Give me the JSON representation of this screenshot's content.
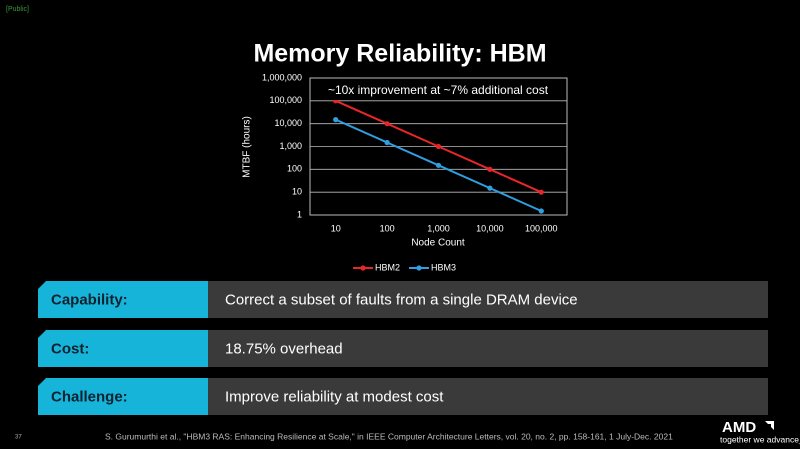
{
  "classification": "[Public]",
  "chart_data": {
    "type": "line",
    "title": "Memory Reliability: HBM",
    "annotation": "~10x improvement at ~7% additional cost",
    "x_label": "Node Count",
    "y_label": "MTBF (hours)",
    "categories": [
      "10",
      "100",
      "1,000",
      "10,000",
      "100,000"
    ],
    "series": [
      {
        "name": "HBM2",
        "color": "#e8262a",
        "values": [
          100000,
          10000,
          1000,
          100,
          10
        ]
      },
      {
        "name": "HBM3",
        "color": "#2f9fe0",
        "values": [
          15000,
          1500,
          150,
          15,
          1.5
        ]
      }
    ],
    "ylim": [
      1,
      1000000
    ],
    "log_scale": true,
    "grid": true,
    "yticks": [
      1,
      10,
      100,
      {
        "value": 1000,
        "label": "1,000"
      },
      {
        "value": 10000,
        "label": "10,000"
      },
      {
        "value": 100000,
        "label": "100,000"
      },
      {
        "value": 1000000,
        "label": "1,000,000"
      }
    ],
    "legend": "bottom"
  },
  "rows": [
    {
      "label": "Capability:",
      "text": "Correct a subset of faults from a single DRAM device"
    },
    {
      "label": "Cost:",
      "text": "18.75% overhead"
    },
    {
      "label": "Challenge:",
      "text": "Improve reliability at modest cost"
    }
  ],
  "footer": {
    "page": "37",
    "citation": "S. Gurumurthi et al., \"HBM3 RAS: Enhancing Resilience at Scale,\" in IEEE Computer Architecture Letters, vol. 20, no. 2, pp. 158-161, 1 July-Dec. 2021",
    "logo": "AMD",
    "tagline": "together we advance_"
  }
}
